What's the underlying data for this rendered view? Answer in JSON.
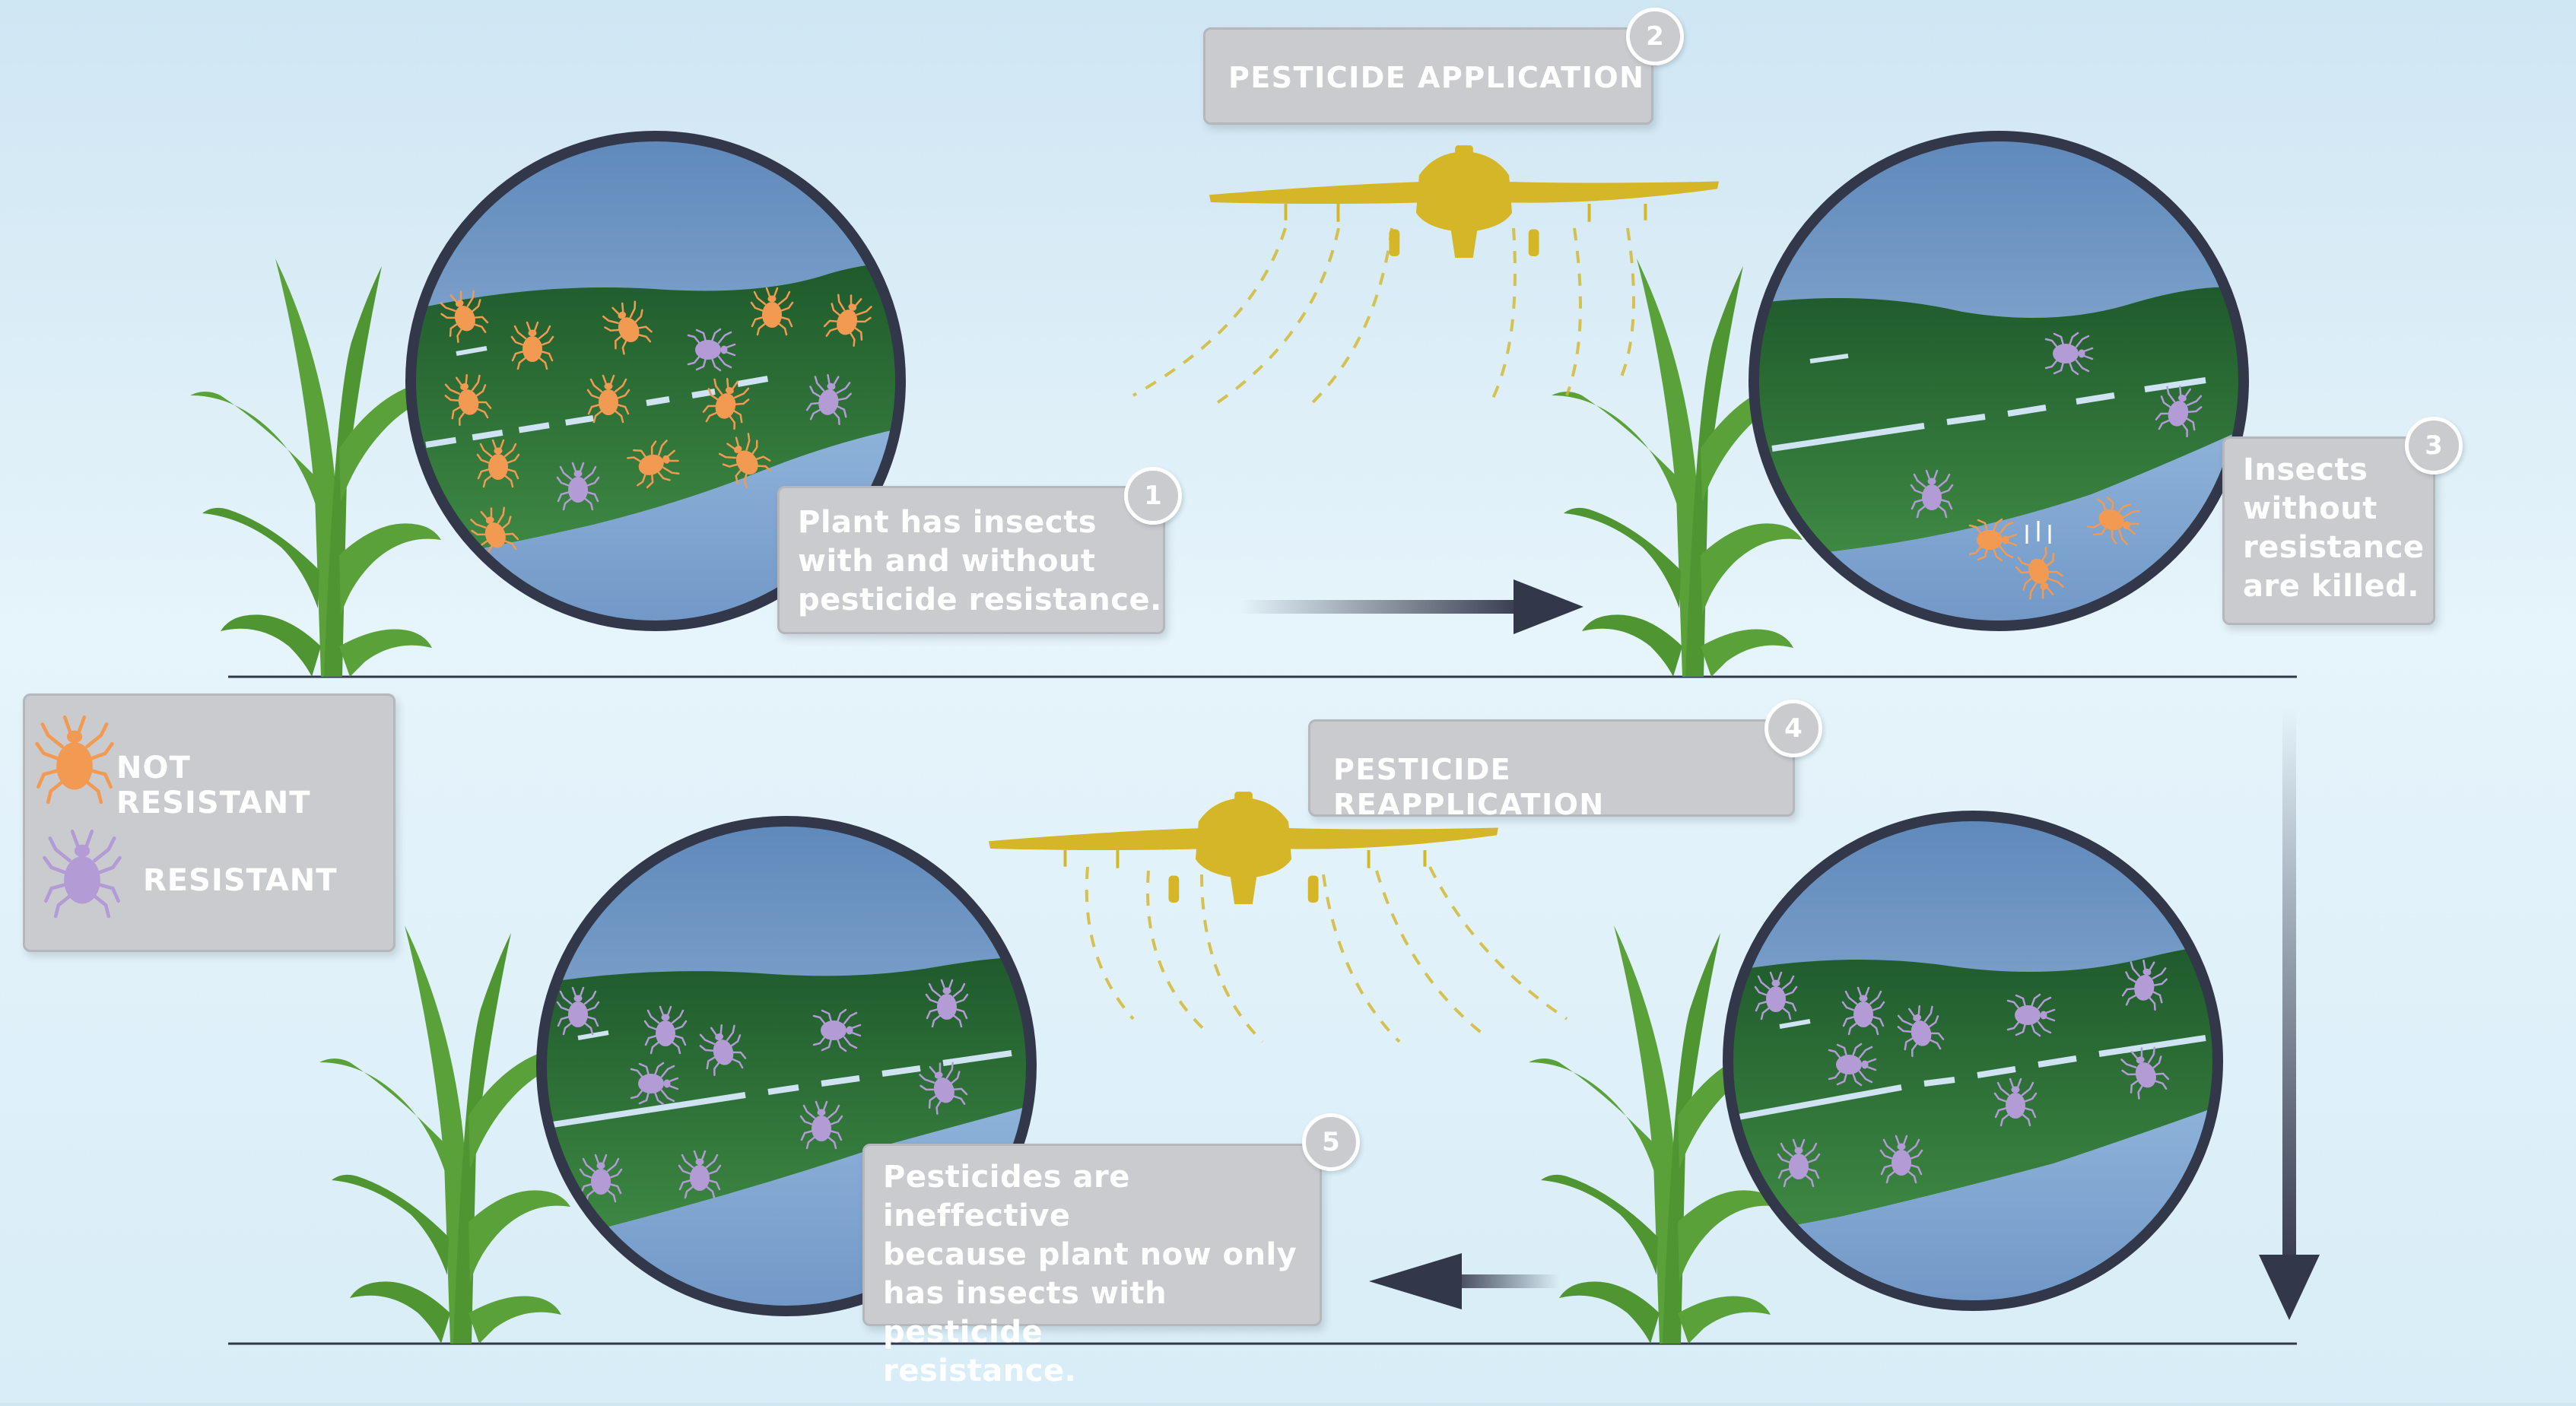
{
  "steps": [
    {
      "number": "1",
      "text": [
        "Plant has insects",
        "with and without",
        "pesticide resistance."
      ]
    },
    {
      "number": "2",
      "text": [
        "PESTICIDE APPLICATION"
      ]
    },
    {
      "number": "3",
      "text": [
        "Insects",
        "without",
        "resistance",
        "are killed."
      ]
    },
    {
      "number": "4",
      "text": [
        "PESTICIDE REAPPLICATION"
      ]
    },
    {
      "number": "5",
      "text": [
        "Pesticides are ineffective",
        "because plant now only",
        "has insects with pesticide",
        "resistance."
      ]
    }
  ],
  "legend": {
    "not_resistant": "NOT RESISTANT",
    "resistant": "RESISTANT"
  },
  "colors": {
    "not_resistant_insect": "#f39a52",
    "resistant_insect": "#b39bd6",
    "plane": "#d4b627",
    "corn": "#5aa13a",
    "field": "#2c6e3a",
    "circle_border": "#33374a",
    "callout": "#c9cbcf"
  }
}
